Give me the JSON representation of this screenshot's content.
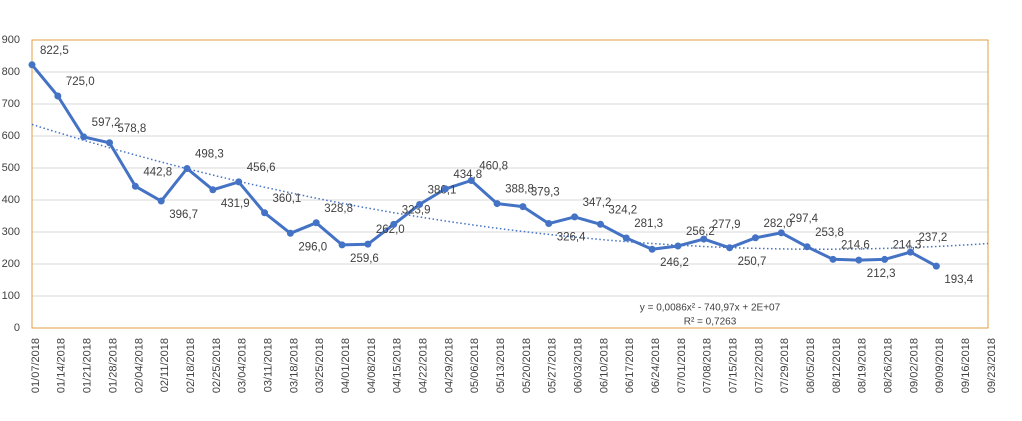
{
  "chart_data": {
    "type": "line",
    "categories": [
      "01/07/2018",
      "01/14/2018",
      "01/21/2018",
      "01/28/2018",
      "02/04/2018",
      "02/11/2018",
      "02/18/2018",
      "02/25/2018",
      "03/04/2018",
      "03/11/2018",
      "03/18/2018",
      "03/25/2018",
      "04/01/2018",
      "04/08/2018",
      "04/15/2018",
      "04/22/2018",
      "04/29/2018",
      "05/06/2018",
      "05/13/2018",
      "05/20/2018",
      "05/27/2018",
      "06/03/2018",
      "06/10/2018",
      "06/17/2018",
      "06/24/2018",
      "07/01/2018",
      "07/08/2018",
      "07/15/2018",
      "07/22/2018",
      "07/29/2018",
      "08/05/2018",
      "08/12/2018",
      "08/19/2018",
      "08/26/2018",
      "09/02/2018",
      "09/09/2018",
      "09/16/2018",
      "09/23/2018"
    ],
    "series": [
      {
        "color": "#4472c4",
        "values": [
          822.5,
          725.0,
          597.2,
          578.8,
          442.8,
          396.7,
          498.3,
          431.9,
          456.6,
          360.1,
          296.0,
          328.8,
          259.6,
          262.0,
          323.9,
          386.1,
          434.8,
          460.8,
          388.8,
          379.3,
          326.4,
          347.2,
          324.2,
          281.3,
          246.2,
          256.2,
          277.9,
          250.7,
          282.0,
          297.4,
          253.8,
          214.6,
          212.3,
          214.3,
          237.2,
          193.4,
          null,
          null
        ],
        "value_labels": [
          "822,5",
          "725,0",
          "597,2",
          "578,8",
          "442,8",
          "396,7",
          "498,3",
          "431,9",
          "456,6",
          "360,1",
          "296,0",
          "328,8",
          "259,6",
          "262,0",
          "323,9",
          "386,1",
          "434,8",
          "460,8",
          "388,8",
          "379,3",
          "326,4",
          "347,2",
          "324,2",
          "281,3",
          "246,2",
          "256,2",
          "277,9",
          "250,7",
          "282,0",
          "297,4",
          "253,8",
          "214,6",
          "212,3",
          "214,3",
          "237,2",
          "193,4",
          null,
          null
        ]
      }
    ],
    "trendline": {
      "type": "polynomial",
      "order": 2,
      "equation": "y = 0,0086x² - 740,97x + 2E+07",
      "r_squared": "R² = 0,7263"
    },
    "ylim": [
      0,
      900
    ],
    "yticks": [
      0,
      100,
      200,
      300,
      400,
      500,
      600,
      700,
      800,
      900
    ],
    "grid": true
  }
}
